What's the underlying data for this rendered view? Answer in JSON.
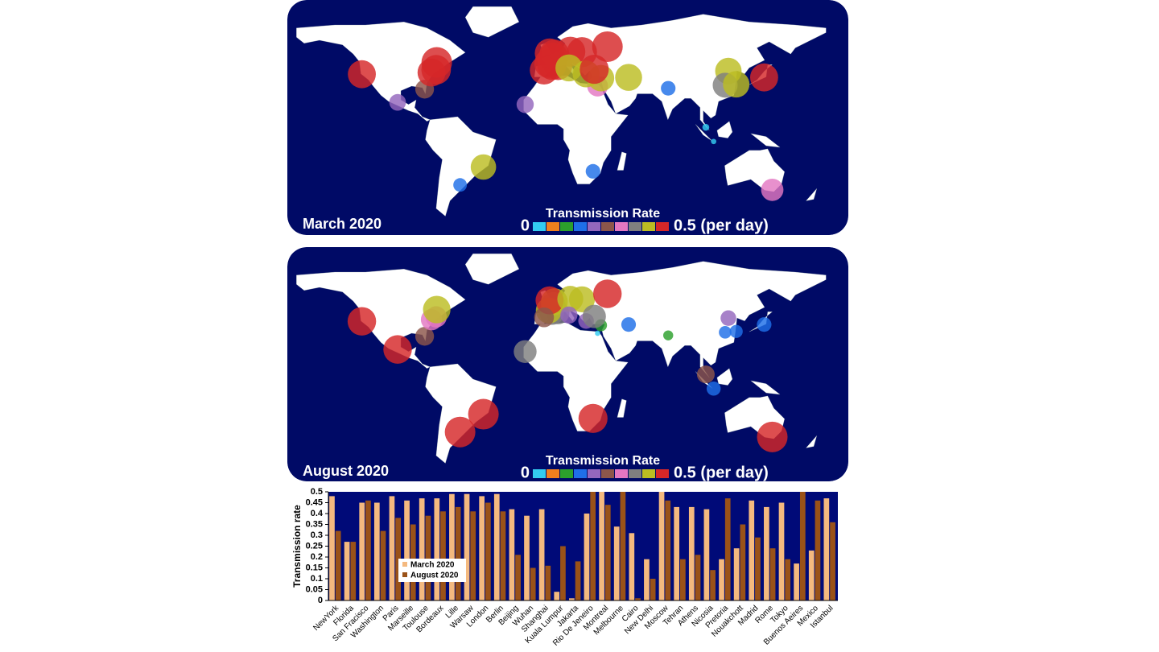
{
  "maps": [
    {
      "label": "March 2020"
    },
    {
      "label": "August 2020"
    }
  ],
  "colorbar": {
    "title": "Transmission Rate",
    "min_label": "0",
    "max_label": "0.5 (per day)",
    "colors": [
      "#33ccf0",
      "#f07f1e",
      "#2ca02c",
      "#1f6fe8",
      "#9467bd",
      "#8c564b",
      "#e377c2",
      "#7f7f7f",
      "#bcbd22",
      "#d62728"
    ]
  },
  "chart_data": {
    "type": "bar",
    "y_label": "Transmission rate",
    "categories": [
      "NewYork",
      "Florida",
      "San Fracisco",
      "Washington",
      "Paris",
      "Marseille",
      "Toulouse",
      "Bordeaux",
      "Lille",
      "Warsaw",
      "London",
      "Berlin",
      "Beijing",
      "Wuhan",
      "Shanghai",
      "Kuala Lumpur",
      "Jakarta",
      "Rio De Jeneiro",
      "Montreal",
      "Melbourne",
      "Cairo",
      "New Delhi",
      "Moscow",
      "Tehran",
      "Athens",
      "Nicosia",
      "Pretoria",
      "Nouakchott",
      "Madrid",
      "Rome",
      "Tokyo",
      "Buenos Aeires",
      "Mexico",
      "Istanbul"
    ],
    "series": [
      {
        "name": "March 2020",
        "color": "#f4b97f",
        "values": [
          0.48,
          0.27,
          0.45,
          0.45,
          0.48,
          0.46,
          0.47,
          0.47,
          0.49,
          0.49,
          0.48,
          0.49,
          0.42,
          0.39,
          0.42,
          0.04,
          0.01,
          0.4,
          0.5,
          0.34,
          0.31,
          0.19,
          0.5,
          0.43,
          0.43,
          0.42,
          0.19,
          0.24,
          0.46,
          0.43,
          0.45,
          0.17,
          0.23,
          0.47
        ]
      },
      {
        "name": "August 2020",
        "color": "#9a5218",
        "values": [
          0.32,
          0.27,
          0.46,
          0.32,
          0.38,
          0.35,
          0.39,
          0.41,
          0.43,
          0.41,
          0.45,
          0.41,
          0.21,
          0.15,
          0.16,
          0.25,
          0.18,
          0.5,
          0.44,
          0.5,
          0.01,
          0.1,
          0.46,
          0.19,
          0.21,
          0.14,
          0.47,
          0.35,
          0.29,
          0.24,
          0.19,
          0.5,
          0.46,
          0.36
        ]
      }
    ],
    "ylim": [
      0,
      0.5
    ],
    "yticks": [
      0,
      0.05,
      0.1,
      0.15,
      0.2,
      0.25,
      0.3,
      0.35,
      0.4,
      0.45,
      0.5
    ]
  }
}
